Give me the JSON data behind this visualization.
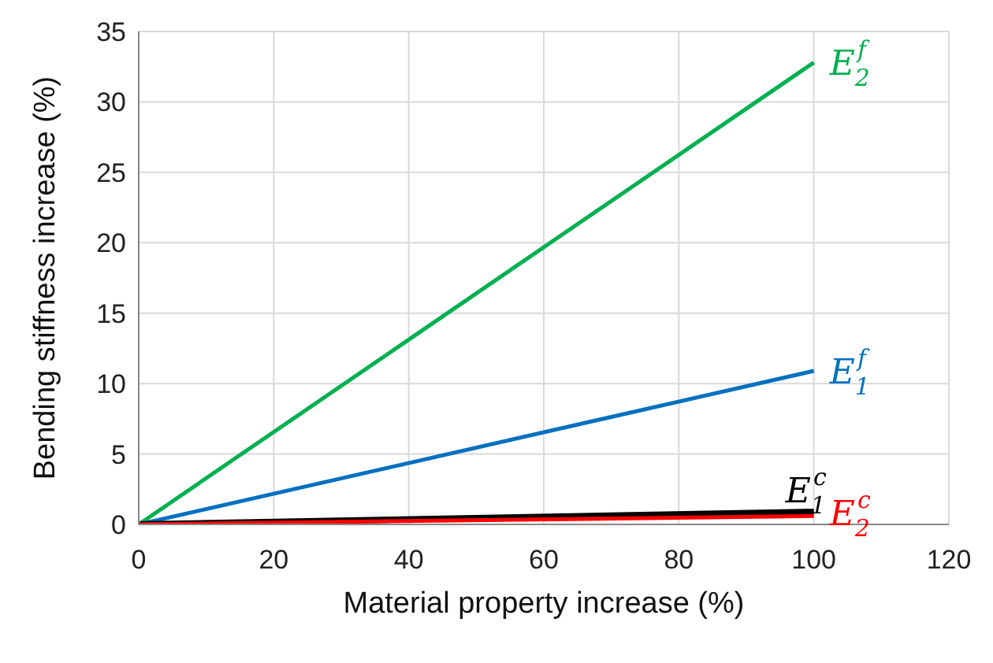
{
  "chart_data": {
    "type": "line",
    "xlabel": "Material property increase (%)",
    "ylabel": "Bending stiffness increase (%)",
    "x": [
      0,
      100
    ],
    "series": [
      {
        "name": "E$_{2}$$^{f}$",
        "color": "#00b050",
        "values": [
          0,
          32.8
        ]
      },
      {
        "name": "E$_{1}$$^{f}$",
        "color": "#0070c0",
        "values": [
          0,
          10.9
        ]
      },
      {
        "name": "E$_{1}$$^{c}$",
        "color": "#000000",
        "values": [
          0,
          0.9
        ]
      },
      {
        "name": "E$_{2}$$^{c}$",
        "color": "#ff0000",
        "values": [
          0,
          0.6
        ]
      }
    ],
    "xlim": [
      0,
      120
    ],
    "xticks": [
      0,
      20,
      40,
      60,
      80,
      100,
      120
    ],
    "ylim": [
      0,
      35
    ],
    "yticks": [
      0,
      5,
      10,
      15,
      20,
      25,
      30,
      35
    ],
    "grid": true,
    "marker": "none",
    "line_style": "solid"
  }
}
